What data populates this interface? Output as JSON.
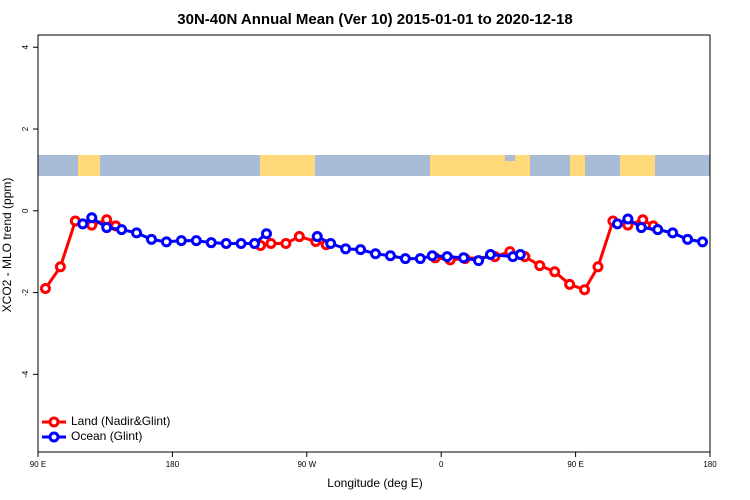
{
  "chart_data": {
    "type": "line",
    "title": "30N-40N Annual Mean (Ver 10)   2015-01-01 to 2020-12-18",
    "x_label": "Longitude (deg E)",
    "y_label": "XCO2 - MLO trend (ppm)",
    "xlim": [
      90,
      540
    ],
    "xticks": [
      {
        "value": 90,
        "label": "90 E"
      },
      180,
      {
        "value": 270,
        "label": "90 W"
      },
      {
        "value": 360,
        "label": "0"
      },
      {
        "value": 450,
        "label": "90 E"
      },
      {
        "value": 540,
        "label": "180"
      }
    ],
    "ylim": [
      -5.9,
      4.3
    ],
    "yticks": [
      4,
      2,
      0,
      -2,
      -4
    ],
    "legend": "bottom-left",
    "series": [
      {
        "name": "Land (Nadir&Glint)",
        "color": "#ff0000",
        "x": [
          95,
          105,
          115,
          126,
          136,
          142,
          190,
          239,
          246,
          256,
          265,
          276,
          283,
          320,
          356,
          366,
          376,
          396,
          406,
          416,
          426,
          436,
          446,
          456,
          465,
          475,
          485,
          495,
          502
        ],
        "values": [
          -1.9,
          -1.37,
          -0.25,
          -0.35,
          -0.22,
          -0.37,
          null,
          -0.85,
          -0.8,
          -0.8,
          -0.63,
          -0.75,
          -0.83,
          null,
          -1.15,
          -1.2,
          -1.17,
          -1.12,
          -1.0,
          -1.12,
          -1.34,
          -1.49,
          -1.8,
          -1.93,
          -1.37,
          -0.25,
          -0.35,
          -0.22,
          -0.37
        ]
      },
      {
        "name": "Ocean (Glint)",
        "color": "#0000ff",
        "x": [
          120,
          126,
          136,
          146,
          156,
          166,
          176,
          186,
          196,
          206,
          216,
          226,
          235,
          243,
          260,
          277,
          286,
          296,
          306,
          316,
          326,
          336,
          346,
          354,
          364,
          375,
          385,
          393,
          408,
          413,
          450,
          478,
          485,
          494,
          505,
          515,
          525,
          535
        ],
        "values": [
          -0.32,
          -0.17,
          -0.41,
          -0.46,
          -0.54,
          -0.7,
          -0.76,
          -0.73,
          -0.73,
          -0.78,
          -0.8,
          -0.8,
          -0.8,
          -0.56,
          null,
          -0.63,
          -0.8,
          -0.93,
          -0.95,
          -1.05,
          -1.1,
          -1.17,
          -1.17,
          -1.1,
          -1.12,
          -1.15,
          -1.22,
          -1.07,
          -1.12,
          -1.07,
          null,
          -0.32,
          -0.2,
          -0.41,
          -0.46,
          -0.54,
          -0.7,
          -0.76
        ]
      }
    ]
  }
}
